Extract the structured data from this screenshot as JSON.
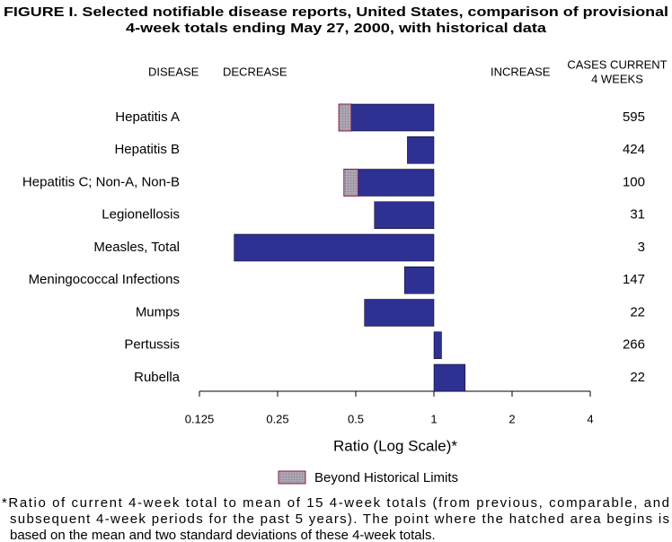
{
  "chart_data": {
    "type": "bar",
    "orientation": "horizontal",
    "log_scale": true,
    "title_lines": [
      "FIGURE I. Selected notifiable disease reports, United States, comparison of provisional",
      "4-week totals ending May 27, 2000, with historical data"
    ],
    "headers": {
      "disease": "DISEASE",
      "decrease": "DECREASE",
      "increase": "INCREASE",
      "cases": [
        "CASES CURRENT",
        "4 WEEKS"
      ]
    },
    "categories": [
      "Hepatitis A",
      "Hepatitis B",
      "Hepatitis C; Non-A, Non-B",
      "Legionellosis",
      "Measles, Total",
      "Meningococcal Infections",
      "Mumps",
      "Pertussis",
      "Rubella"
    ],
    "values": [
      0.43,
      0.79,
      0.45,
      0.59,
      0.17,
      0.77,
      0.54,
      1.07,
      1.32
    ],
    "limits": [
      0.48,
      null,
      0.51,
      null,
      null,
      null,
      null,
      null,
      null
    ],
    "cases": [
      595,
      424,
      100,
      31,
      3,
      147,
      22,
      266,
      22
    ],
    "color": "#2e3192",
    "limit_color": "#aaa5b0",
    "limit_border": "#8a2050",
    "legend": "Beyond Historical Limits",
    "xlim": [
      0.125,
      4
    ],
    "xticks": [
      0.125,
      0.25,
      0.5,
      1,
      2,
      4
    ],
    "xlabel": "Ratio (Log Scale)*",
    "footnote_lines": [
      "*Ratio of current 4-week total to mean of 15 4-week totals (from previous, comparable, and",
      "subsequent 4-week periods for the past 5 years). The point where the hatched area begins is",
      "based on the mean and two standard deviations of these 4-week totals."
    ]
  }
}
